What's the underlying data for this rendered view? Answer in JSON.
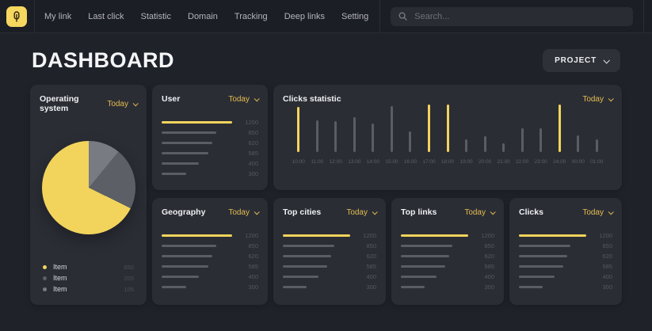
{
  "colors": {
    "accent": "#f2d45c",
    "accent_text": "#e3bd4e",
    "bar_gray": "#5a5d64"
  },
  "navbar": {
    "menu": [
      "My link",
      "Last click",
      "Statistic",
      "Domain",
      "Tracking",
      "Deep links",
      "Setting"
    ],
    "search_placeholder": "Search..."
  },
  "header": {
    "title": "DASHBOARD",
    "project_label": "PROJECT"
  },
  "chart_data": [
    {
      "type": "pie",
      "title": "Operating system",
      "period": "Today",
      "legend_position": "bottom-left",
      "slices": [
        {
          "label": "Item",
          "value": 650,
          "color": "#f2d45c"
        },
        {
          "label": "Item",
          "value": 205,
          "color": "#5c5f66"
        },
        {
          "label": "Item",
          "value": 105,
          "color": "#787b82"
        }
      ]
    },
    {
      "type": "bar",
      "orientation": "horizontal",
      "title": "User",
      "period": "Today",
      "values": [
        1200,
        850,
        620,
        585,
        400,
        300
      ],
      "bar_pct": [
        100,
        77,
        72,
        66,
        53,
        35
      ],
      "highlight_index": 0
    },
    {
      "type": "bar",
      "orientation": "vertical",
      "title": "Clicks statistic",
      "period": "Today",
      "categories": [
        "10:00",
        "11:00",
        "12:00",
        "13:00",
        "14:00",
        "15:00",
        "16:00",
        "17:00",
        "18:00",
        "19:00",
        "20:00",
        "21:00",
        "22:00",
        "23:00",
        "24:00",
        "00:00",
        "01:00"
      ],
      "values": [
        95,
        66,
        65,
        73,
        60,
        96,
        44,
        100,
        100,
        27,
        34,
        18,
        50,
        50,
        100,
        35,
        26
      ],
      "highlight_indices": [
        0,
        7,
        8,
        14
      ],
      "ylim": [
        0,
        100
      ]
    },
    {
      "type": "bar",
      "orientation": "horizontal",
      "title": "Geography",
      "period": "Today",
      "values": [
        1200,
        850,
        620,
        585,
        400,
        300
      ],
      "bar_pct": [
        100,
        77,
        72,
        66,
        53,
        35
      ],
      "highlight_index": 0
    },
    {
      "type": "bar",
      "orientation": "horizontal",
      "title": "Top cities",
      "period": "Today",
      "values": [
        1200,
        850,
        620,
        585,
        400,
        300
      ],
      "bar_pct": [
        100,
        77,
        72,
        66,
        53,
        35
      ],
      "highlight_index": 0
    },
    {
      "type": "bar",
      "orientation": "horizontal",
      "title": "Top links",
      "period": "Today",
      "values": [
        1200,
        850,
        620,
        585,
        400,
        300
      ],
      "bar_pct": [
        100,
        77,
        72,
        66,
        53,
        35
      ],
      "highlight_index": 0
    },
    {
      "type": "bar",
      "orientation": "horizontal",
      "title": "Clicks",
      "period": "Today",
      "values": [
        1200,
        850,
        620,
        585,
        400,
        300
      ],
      "bar_pct": [
        100,
        77,
        72,
        66,
        53,
        35
      ],
      "highlight_index": 0
    }
  ]
}
